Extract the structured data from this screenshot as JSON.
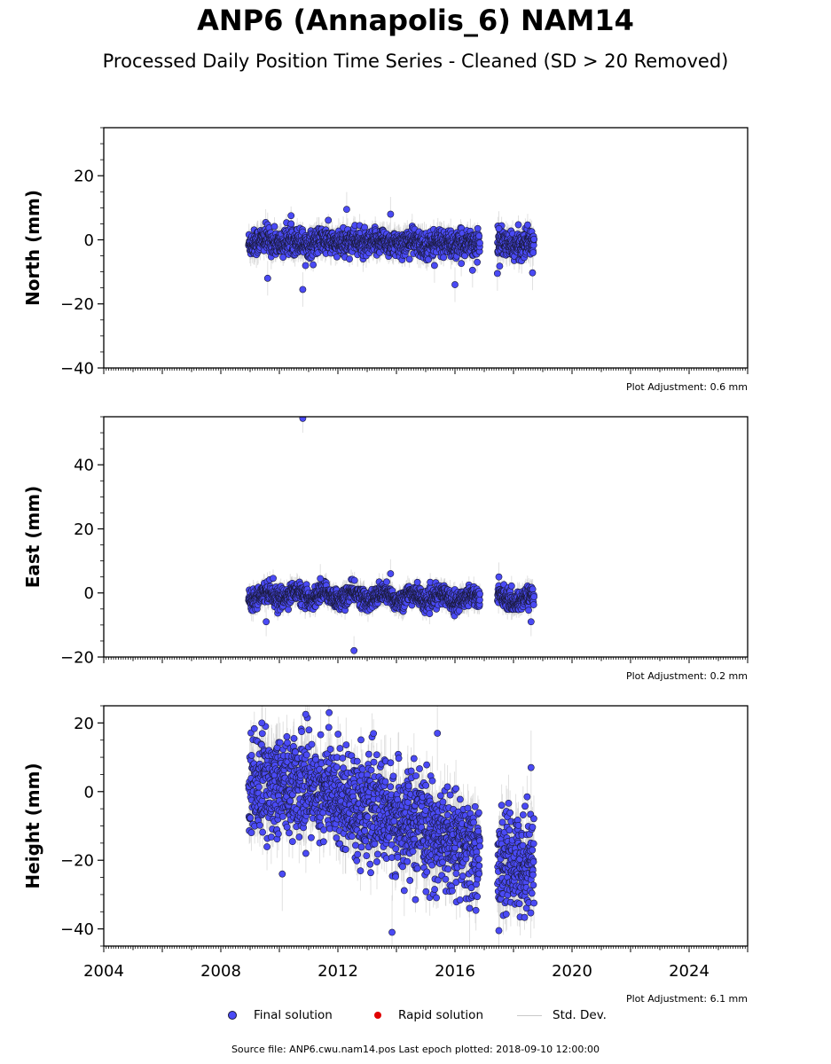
{
  "title": "ANP6 (Annapolis_6) NAM14",
  "subtitle": "Processed Daily Position Time Series - Cleaned (SD > 20 Removed)",
  "legend": {
    "final": "Final solution",
    "rapid": "Rapid solution",
    "stddev": "Std. Dev."
  },
  "colors": {
    "final": "#4a4af5",
    "rapid": "#e00000",
    "stddev": "#c8c8c8",
    "marker_edge": "#1a1a3a"
  },
  "footer": "Source file: ANP6.cwu.nam14.pos  Last epoch plotted: 2018-09-10 12:00:00",
  "chart_data": [
    {
      "type": "scatter",
      "ylabel": "North (mm)",
      "xlim": [
        2004,
        2026
      ],
      "ylim": [
        -40,
        35
      ],
      "yticks": [
        -40,
        -20,
        0,
        20
      ],
      "xticks": [
        2004,
        2008,
        2012,
        2016,
        2020,
        2024
      ],
      "show_xtick_labels": false,
      "adjustment": "Plot Adjustment: 0.6 mm",
      "data_start": 2008.95,
      "data_end": 2018.7,
      "gap": [
        2016.85,
        2017.45
      ],
      "trend": [
        [
          2009,
          -0.5
        ],
        [
          2018.7,
          -1.5
        ]
      ],
      "spread": 2.0,
      "err_mean": 3.0,
      "bumps": [
        [
          2012.25,
          0.7
        ]
      ],
      "outliers": [
        [
          2009.6,
          -12
        ],
        [
          2010.4,
          5
        ],
        [
          2010.8,
          -15.5
        ],
        [
          2012.3,
          9.5
        ],
        [
          2013.8,
          8
        ],
        [
          2015.3,
          -8
        ],
        [
          2016.0,
          -14
        ],
        [
          2016.6,
          -9.5
        ],
        [
          2017.45,
          -10.5
        ],
        [
          2017.5,
          3.5
        ],
        [
          2018.65,
          -10.3
        ]
      ]
    },
    {
      "type": "scatter",
      "ylabel": "East (mm)",
      "xlim": [
        2004,
        2026
      ],
      "ylim": [
        -20,
        55
      ],
      "yticks": [
        -20,
        0,
        20,
        40
      ],
      "xticks": [
        2004,
        2008,
        2012,
        2016,
        2020,
        2024
      ],
      "show_xtick_labels": false,
      "adjustment": "Plot Adjustment: 0.2 mm",
      "data_start": 2008.95,
      "data_end": 2018.7,
      "gap": [
        2016.85,
        2017.45
      ],
      "trend": [
        [
          2009,
          -0.5
        ],
        [
          2018.7,
          -2
        ]
      ],
      "spread": 1.5,
      "err_mean": 2.5,
      "bumps": [
        [
          2012.3,
          1.2
        ]
      ],
      "outliers": [
        [
          2009.55,
          -9
        ],
        [
          2010.8,
          54.5
        ],
        [
          2012.55,
          -18
        ],
        [
          2013.8,
          6
        ],
        [
          2011.4,
          4.5
        ],
        [
          2017.5,
          5
        ],
        [
          2018.6,
          -9
        ]
      ]
    },
    {
      "type": "scatter",
      "ylabel": "Height (mm)",
      "xlim": [
        2004,
        2026
      ],
      "ylim": [
        -45,
        25
      ],
      "yticks": [
        -40,
        -20,
        0,
        20
      ],
      "xticks": [
        2004,
        2008,
        2012,
        2016,
        2020,
        2024
      ],
      "xticklabels": [
        "2004",
        "2008",
        "2012",
        "2016",
        "2020",
        "2024"
      ],
      "show_xtick_labels": true,
      "adjustment": "Plot Adjustment: 6.1 mm",
      "data_start": 2008.95,
      "data_end": 2018.7,
      "gap": [
        2016.85,
        2017.45
      ],
      "trend": [
        [
          2009,
          2
        ],
        [
          2011,
          2
        ],
        [
          2014,
          -8
        ],
        [
          2016.8,
          -18
        ],
        [
          2017.5,
          -21
        ],
        [
          2018.7,
          -20
        ]
      ],
      "spread": 7.0,
      "err_mean": 6.0,
      "bumps": [],
      "outliers": [
        [
          2010.9,
          22.5
        ],
        [
          2011.7,
          23
        ],
        [
          2013.85,
          -41
        ],
        [
          2017.5,
          -40.5
        ],
        [
          2018.6,
          7
        ],
        [
          2015.4,
          17
        ],
        [
          2009.4,
          20
        ],
        [
          2010.1,
          -24
        ],
        [
          2016.5,
          -34
        ]
      ]
    }
  ]
}
